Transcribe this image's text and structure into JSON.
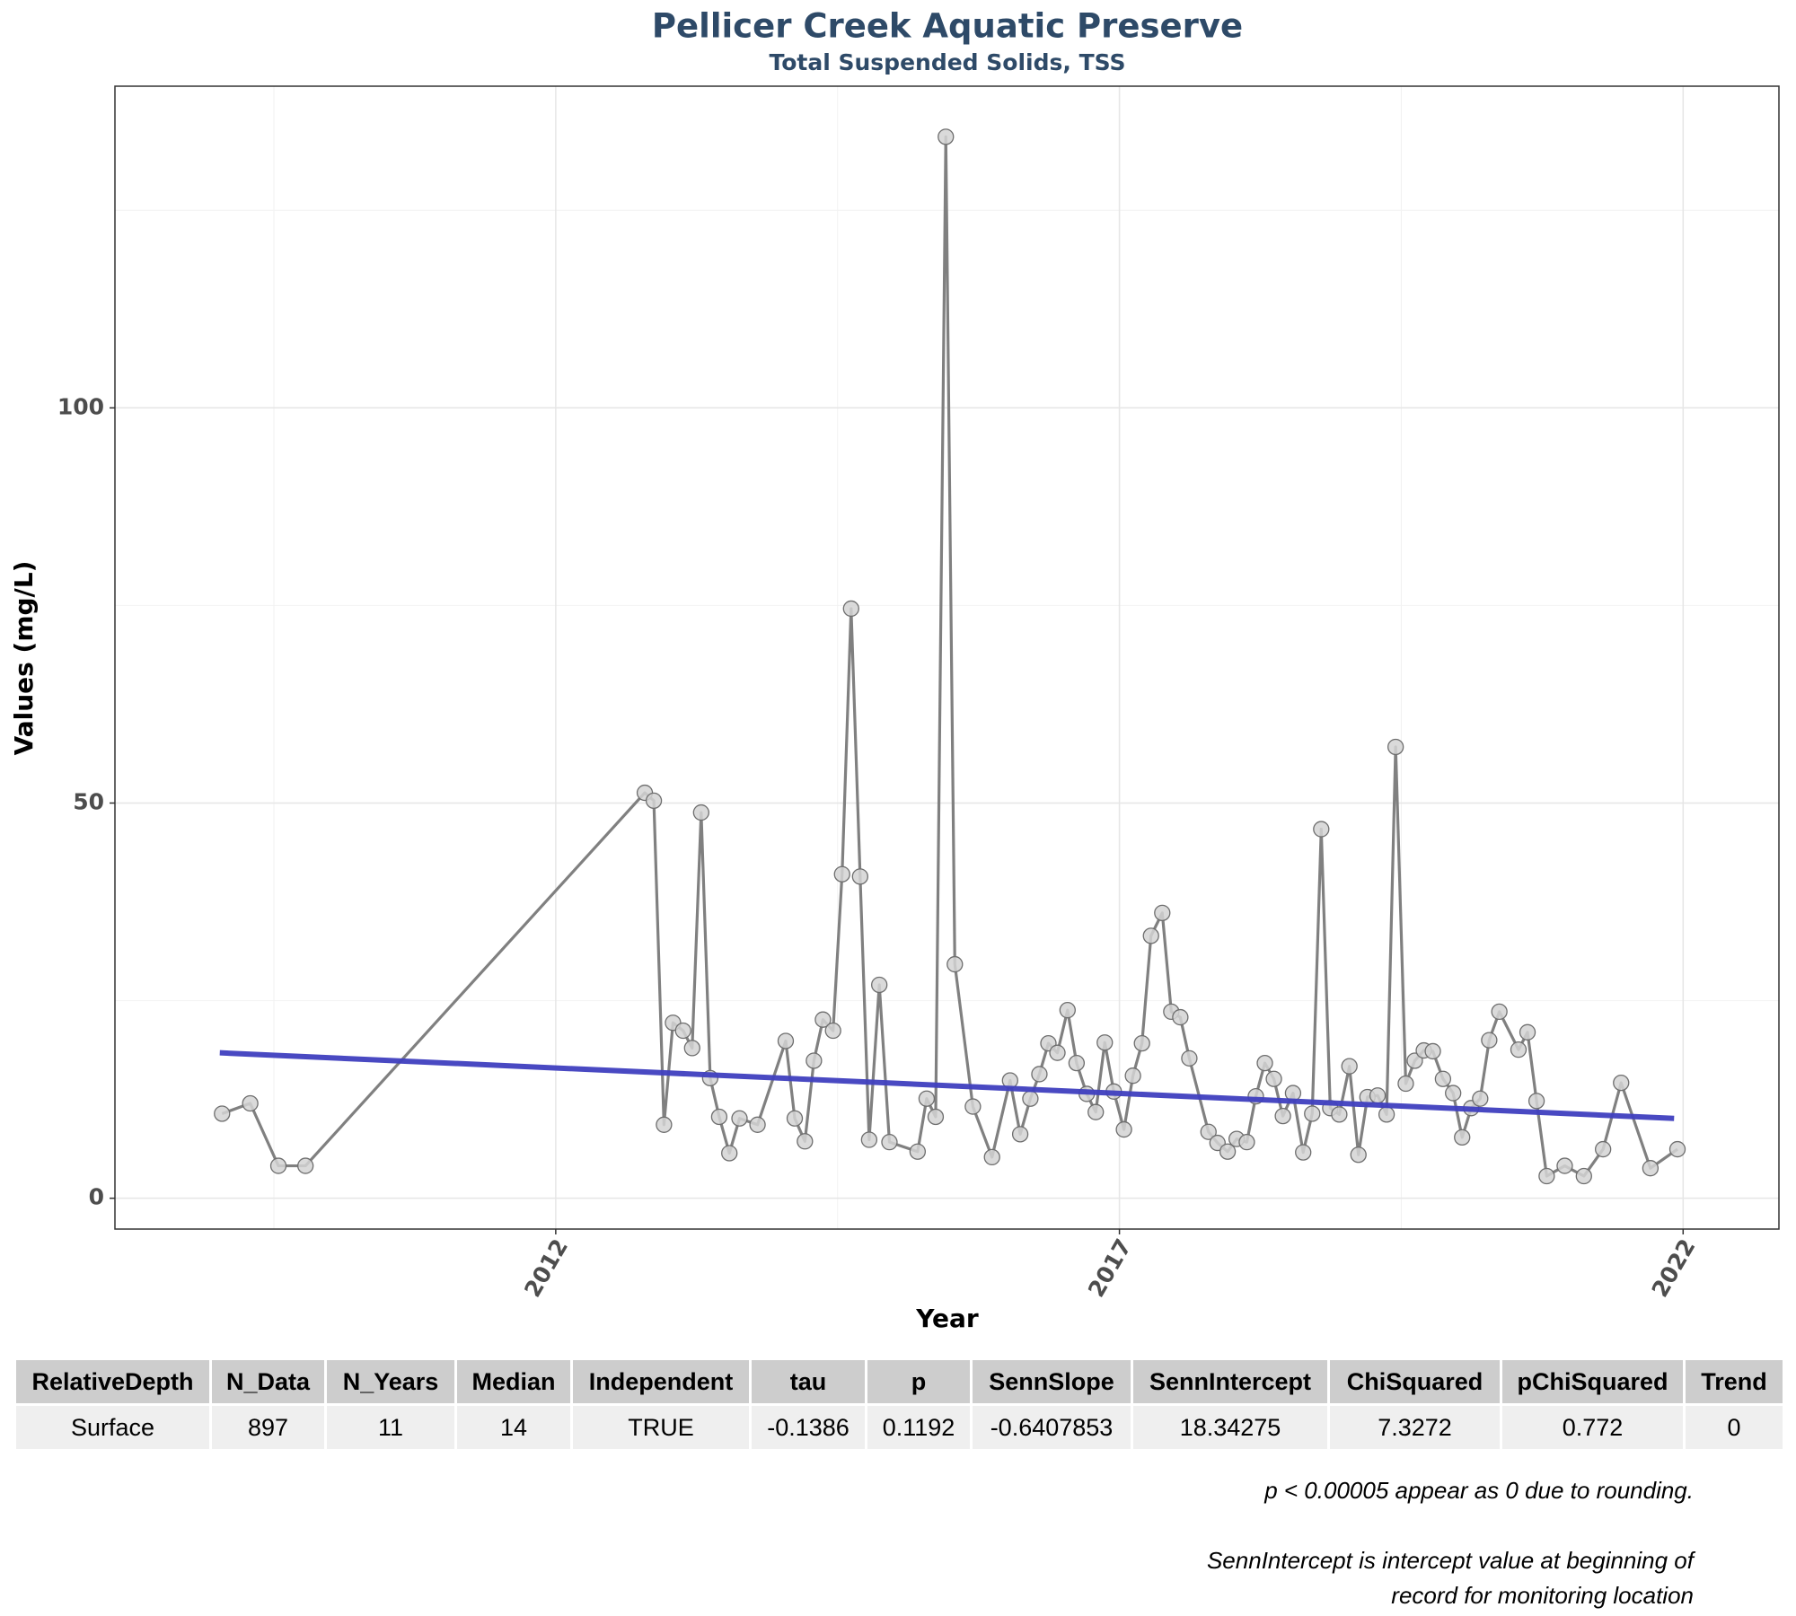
{
  "chart_data": {
    "type": "line",
    "title": "Pellicer Creek Aquatic Preserve",
    "subtitle": "Total Suspended Solids, TSS",
    "x_label": "Year",
    "y_label": "Values (mg/L)",
    "xlim": [
      2008.09,
      2022.85
    ],
    "ylim": [
      -3.9,
      140.7
    ],
    "xticks": [
      2012,
      2017,
      2022
    ],
    "yticks": [
      0,
      50,
      100
    ],
    "x_minor_grid": [
      2009.5,
      2014.5,
      2019.5
    ],
    "y_minor_grid": [
      25,
      75,
      125
    ],
    "grid": true,
    "series": [
      {
        "color": "#808080",
        "marker_color": "#d3d3d3",
        "x": [
          2009.04,
          2009.29,
          2009.54,
          2009.78,
          2012.79,
          2012.87,
          2012.96,
          2013.04,
          2013.13,
          2013.21,
          2013.29,
          2013.37,
          2013.45,
          2013.54,
          2013.63,
          2013.79,
          2014.04,
          2014.12,
          2014.21,
          2014.29,
          2014.37,
          2014.46,
          2014.54,
          2014.62,
          2014.7,
          2014.78,
          2014.87,
          2014.96,
          2015.21,
          2015.29,
          2015.37,
          2015.46,
          2015.54,
          2015.7,
          2015.87,
          2016.03,
          2016.12,
          2016.21,
          2016.29,
          2016.37,
          2016.45,
          2016.54,
          2016.62,
          2016.71,
          2016.79,
          2016.87,
          2016.95,
          2017.04,
          2017.12,
          2017.2,
          2017.28,
          2017.38,
          2017.46,
          2017.54,
          2017.62,
          2017.79,
          2017.87,
          2017.96,
          2018.04,
          2018.13,
          2018.21,
          2018.29,
          2018.37,
          2018.45,
          2018.54,
          2018.63,
          2018.71,
          2018.79,
          2018.87,
          2018.95,
          2019.04,
          2019.12,
          2019.2,
          2019.29,
          2019.37,
          2019.45,
          2019.54,
          2019.62,
          2019.7,
          2019.78,
          2019.87,
          2019.96,
          2020.04,
          2020.12,
          2020.2,
          2020.28,
          2020.37,
          2020.54,
          2020.62,
          2020.7,
          2020.79,
          2020.95,
          2021.12,
          2021.29,
          2021.45,
          2021.71,
          2021.95
        ],
        "values": [
          10.7,
          12.0,
          4.1,
          4.1,
          51.3,
          50.3,
          9.3,
          22.2,
          21.2,
          19.0,
          48.8,
          15.2,
          10.3,
          5.7,
          10.1,
          9.3,
          19.9,
          10.1,
          7.2,
          17.4,
          22.6,
          21.2,
          41.0,
          74.6,
          40.7,
          7.4,
          27.0,
          7.1,
          5.9,
          12.6,
          10.3,
          134.3,
          29.6,
          11.6,
          5.2,
          14.9,
          8.1,
          12.6,
          15.7,
          19.6,
          18.4,
          23.8,
          17.1,
          13.2,
          10.9,
          19.7,
          13.5,
          8.7,
          15.5,
          19.6,
          33.2,
          36.1,
          23.6,
          22.9,
          17.7,
          8.4,
          7.0,
          5.9,
          7.5,
          7.1,
          12.9,
          17.1,
          15.1,
          10.4,
          13.3,
          5.8,
          10.7,
          46.7,
          11.4,
          10.6,
          16.7,
          5.5,
          12.8,
          13.0,
          10.6,
          57.1,
          14.5,
          17.4,
          18.7,
          18.6,
          15.1,
          13.3,
          7.7,
          11.4,
          12.6,
          20.0,
          23.6,
          18.8,
          21.0,
          12.3,
          2.8,
          4.1,
          2.8,
          6.2,
          14.6,
          3.8,
          6.2
        ]
      }
    ],
    "trend_line": {
      "color": "#3f3fbf",
      "x": [
        2009.02,
        2021.92
      ],
      "values": [
        18.4,
        10.1
      ]
    }
  },
  "table": {
    "header": [
      "RelativeDepth",
      "N_Data",
      "N_Years",
      "Median",
      "Independent",
      "tau",
      "p",
      "SennSlope",
      "SennIntercept",
      "ChiSquared",
      "pChiSquared",
      "Trend"
    ],
    "rows": [
      [
        "Surface",
        "897",
        "11",
        "14",
        "TRUE",
        "-0.1386",
        "0.1192",
        "-0.6407853",
        "18.34275",
        "7.3272",
        "0.772",
        "0"
      ]
    ]
  },
  "notes": [
    "p < 0.00005 appear as 0 due to rounding.",
    "SennIntercept is intercept value at beginning of",
    "record for monitoring location"
  ]
}
